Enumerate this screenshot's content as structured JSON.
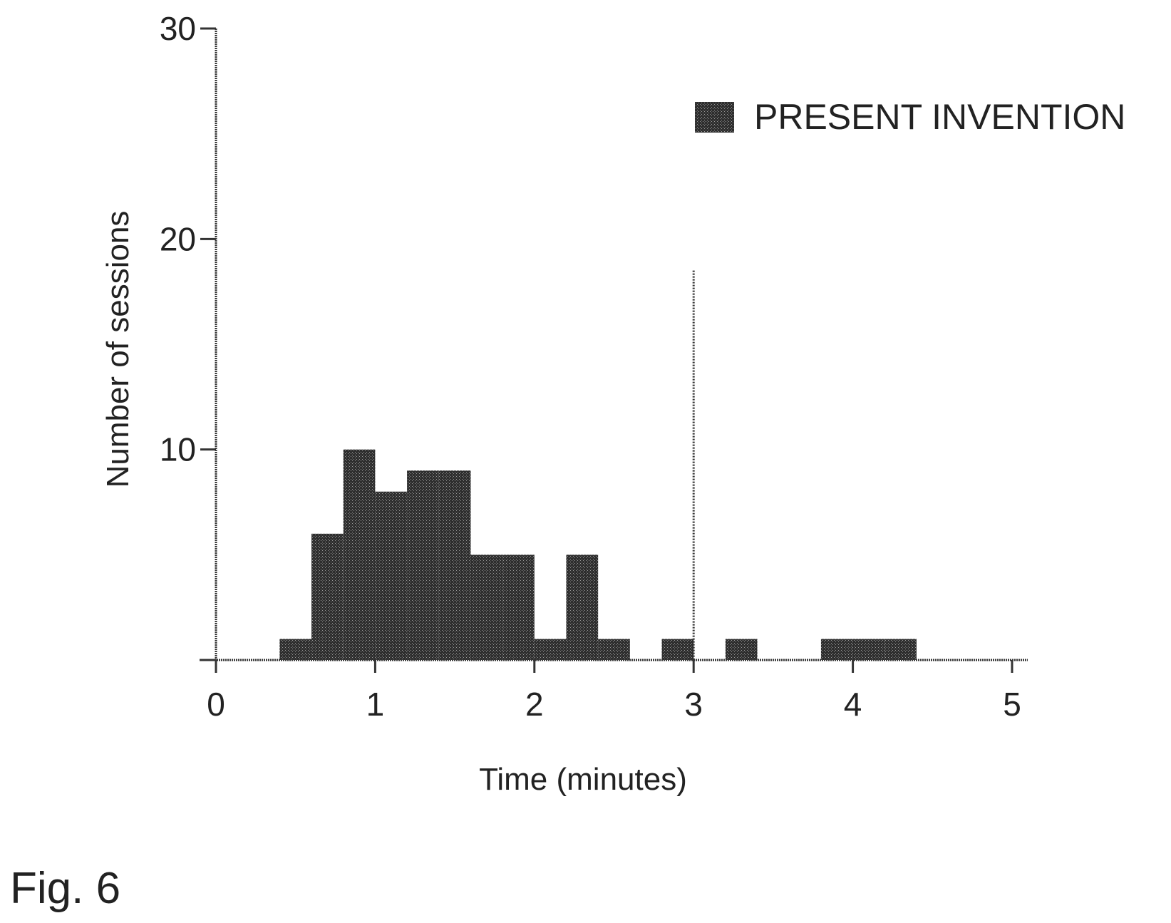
{
  "chart_data": {
    "type": "bar",
    "subtype": "histogram",
    "xlabel": "Time (minutes)",
    "ylabel": "Number of sessions",
    "xlim": [
      0,
      5
    ],
    "ylim": [
      0,
      30
    ],
    "xticks": [
      "0",
      "1",
      "2",
      "3",
      "4",
      "5"
    ],
    "yticks": [
      "10",
      "20",
      "30"
    ],
    "bin_width": 0.2,
    "bins": [
      {
        "x0": 0.4,
        "x1": 0.6,
        "value": 1
      },
      {
        "x0": 0.6,
        "x1": 0.8,
        "value": 6
      },
      {
        "x0": 0.8,
        "x1": 1.0,
        "value": 10
      },
      {
        "x0": 1.0,
        "x1": 1.2,
        "value": 8
      },
      {
        "x0": 1.2,
        "x1": 1.4,
        "value": 9
      },
      {
        "x0": 1.4,
        "x1": 1.6,
        "value": 9
      },
      {
        "x0": 1.6,
        "x1": 1.8,
        "value": 5
      },
      {
        "x0": 1.8,
        "x1": 2.0,
        "value": 5
      },
      {
        "x0": 2.0,
        "x1": 2.2,
        "value": 1
      },
      {
        "x0": 2.2,
        "x1": 2.4,
        "value": 5
      },
      {
        "x0": 2.4,
        "x1": 2.6,
        "value": 1
      },
      {
        "x0": 2.8,
        "x1": 3.0,
        "value": 1
      },
      {
        "x0": 3.2,
        "x1": 3.4,
        "value": 1
      },
      {
        "x0": 3.8,
        "x1": 4.0,
        "value": 1
      },
      {
        "x0": 4.0,
        "x1": 4.2,
        "value": 1
      },
      {
        "x0": 4.2,
        "x1": 4.4,
        "value": 1
      }
    ],
    "reference_line": {
      "x": 3,
      "y_top": 18.5
    },
    "legend": {
      "label": "PRESENT INVENTION",
      "position": "top-right"
    },
    "bar_color": "#3a3a3a",
    "grid": false
  },
  "figure_label": "Fig. 6"
}
